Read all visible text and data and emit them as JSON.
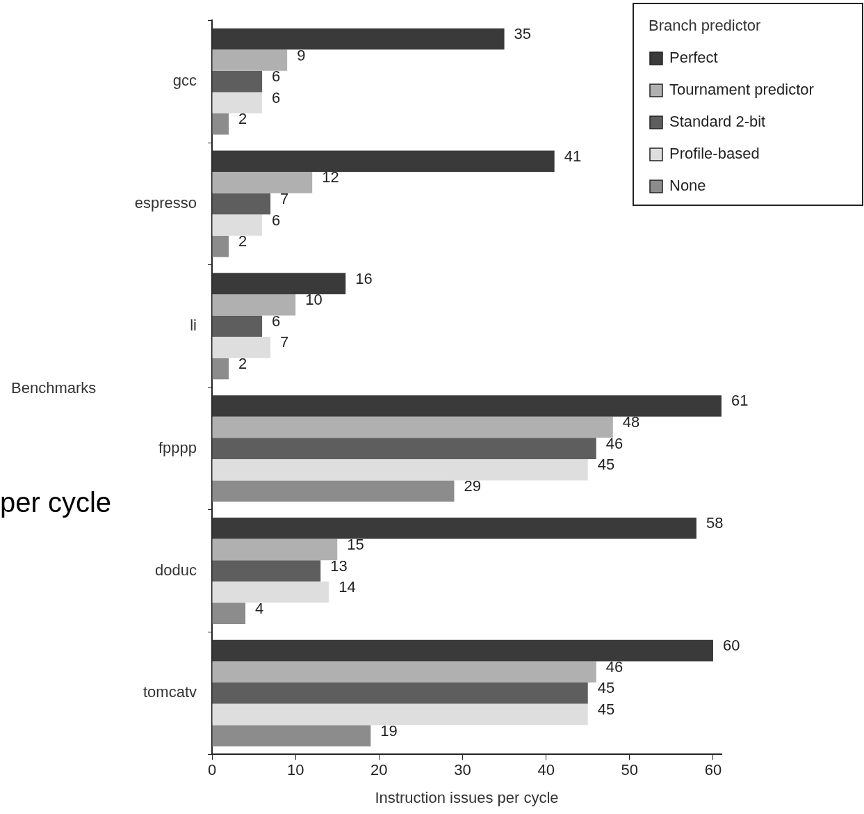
{
  "chart_data": {
    "type": "bar",
    "orientation": "horizontal",
    "xlabel": "Instruction issues per cycle",
    "ylabel": "Benchmarks",
    "legend_title": "Branch predictor",
    "legend": "top right",
    "data_labels": true,
    "annotations": [
      "per cycle"
    ],
    "categories": [
      "gcc",
      "espresso",
      "li",
      "fpppp",
      "doduc",
      "tomcatv"
    ],
    "xlim": [
      0,
      61
    ],
    "xticks": [
      0,
      10,
      20,
      30,
      40,
      50,
      60
    ],
    "series": [
      {
        "name": "Perfect",
        "color": "#3a3a3a",
        "values": [
          35,
          41,
          16,
          61,
          58,
          60
        ]
      },
      {
        "name": "Tournament predictor",
        "color": "#b0b0b0",
        "values": [
          9,
          12,
          10,
          48,
          15,
          46
        ]
      },
      {
        "name": "Standard 2-bit",
        "color": "#5e5e5e",
        "values": [
          6,
          7,
          6,
          46,
          13,
          45
        ]
      },
      {
        "name": "Profile-based",
        "color": "#dedede",
        "values": [
          6,
          6,
          7,
          45,
          14,
          45
        ]
      },
      {
        "name": "None",
        "color": "#8c8c8c",
        "values": [
          2,
          2,
          2,
          29,
          4,
          19
        ]
      }
    ]
  }
}
